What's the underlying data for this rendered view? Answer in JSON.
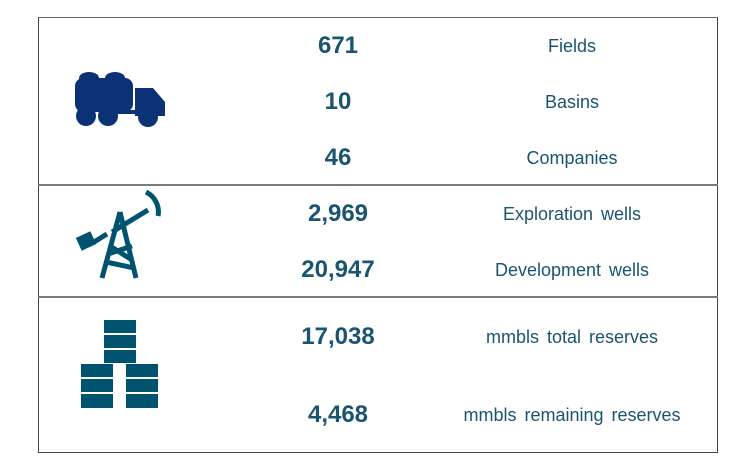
{
  "colors": {
    "truck": "#0a3275",
    "icons": "#00536f",
    "text": "#1a5470"
  },
  "sections": [
    {
      "icon": "tanker-truck-icon",
      "rows": [
        {
          "value": "671",
          "label": "Fields"
        },
        {
          "value": "10",
          "label": "Basins"
        },
        {
          "value": "46",
          "label": "Companies"
        }
      ]
    },
    {
      "icon": "oil-pump-jack-icon",
      "rows": [
        {
          "value": "2,969",
          "label": "Exploration wells"
        },
        {
          "value": "20,947",
          "label": "Development wells"
        }
      ]
    },
    {
      "icon": "oil-barrels-icon",
      "rows": [
        {
          "value": "17,038",
          "label": "mmbls total reserves"
        },
        {
          "value": "4,468",
          "label": "mmbls remaining reserves"
        }
      ]
    }
  ]
}
